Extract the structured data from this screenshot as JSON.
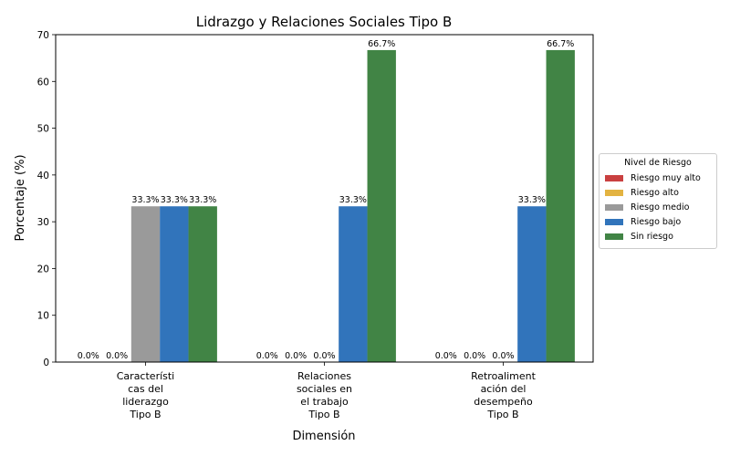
{
  "chart_data": {
    "type": "bar",
    "title": "Lidrazgo y Relaciones Sociales Tipo B",
    "xlabel": "Dimensión",
    "ylabel": "Porcentaje (%)",
    "ylim": [
      0,
      70
    ],
    "yticks": [
      "0",
      "10",
      "20",
      "30",
      "40",
      "50",
      "60",
      "70"
    ],
    "categories": [
      [
        "Característi",
        "cas del",
        "liderazgo",
        "Tipo B"
      ],
      [
        "Relaciones",
        "sociales en",
        "el trabajo",
        "Tipo B"
      ],
      [
        "Retroaliment",
        "ación del",
        "desempeño",
        "Tipo B"
      ]
    ],
    "legend": {
      "title": "Nivel de Riesgo",
      "placement": "center-right"
    },
    "grid": false,
    "series": [
      {
        "name": "Riesgo muy alto",
        "color": "#c94040",
        "values": [
          0,
          0,
          0
        ],
        "labels": [
          "0.0%",
          "0.0%",
          "0.0%"
        ]
      },
      {
        "name": "Riesgo alto",
        "color": "#e3b341",
        "values": [
          0,
          0,
          0
        ],
        "labels": [
          "0.0%",
          "0.0%",
          "0.0%"
        ]
      },
      {
        "name": "Riesgo medio",
        "color": "#9a9a9a",
        "values": [
          33.3,
          0,
          0
        ],
        "labels": [
          "33.3%",
          "0.0%",
          "0.0%"
        ]
      },
      {
        "name": "Riesgo bajo",
        "color": "#3174bb",
        "values": [
          33.3,
          33.3,
          33.3
        ],
        "labels": [
          "33.3%",
          "33.3%",
          "33.3%"
        ]
      },
      {
        "name": "Sin riesgo",
        "color": "#418445",
        "values": [
          33.3,
          66.7,
          66.7
        ],
        "labels": [
          "33.3%",
          "66.7%",
          "66.7%"
        ]
      }
    ]
  }
}
